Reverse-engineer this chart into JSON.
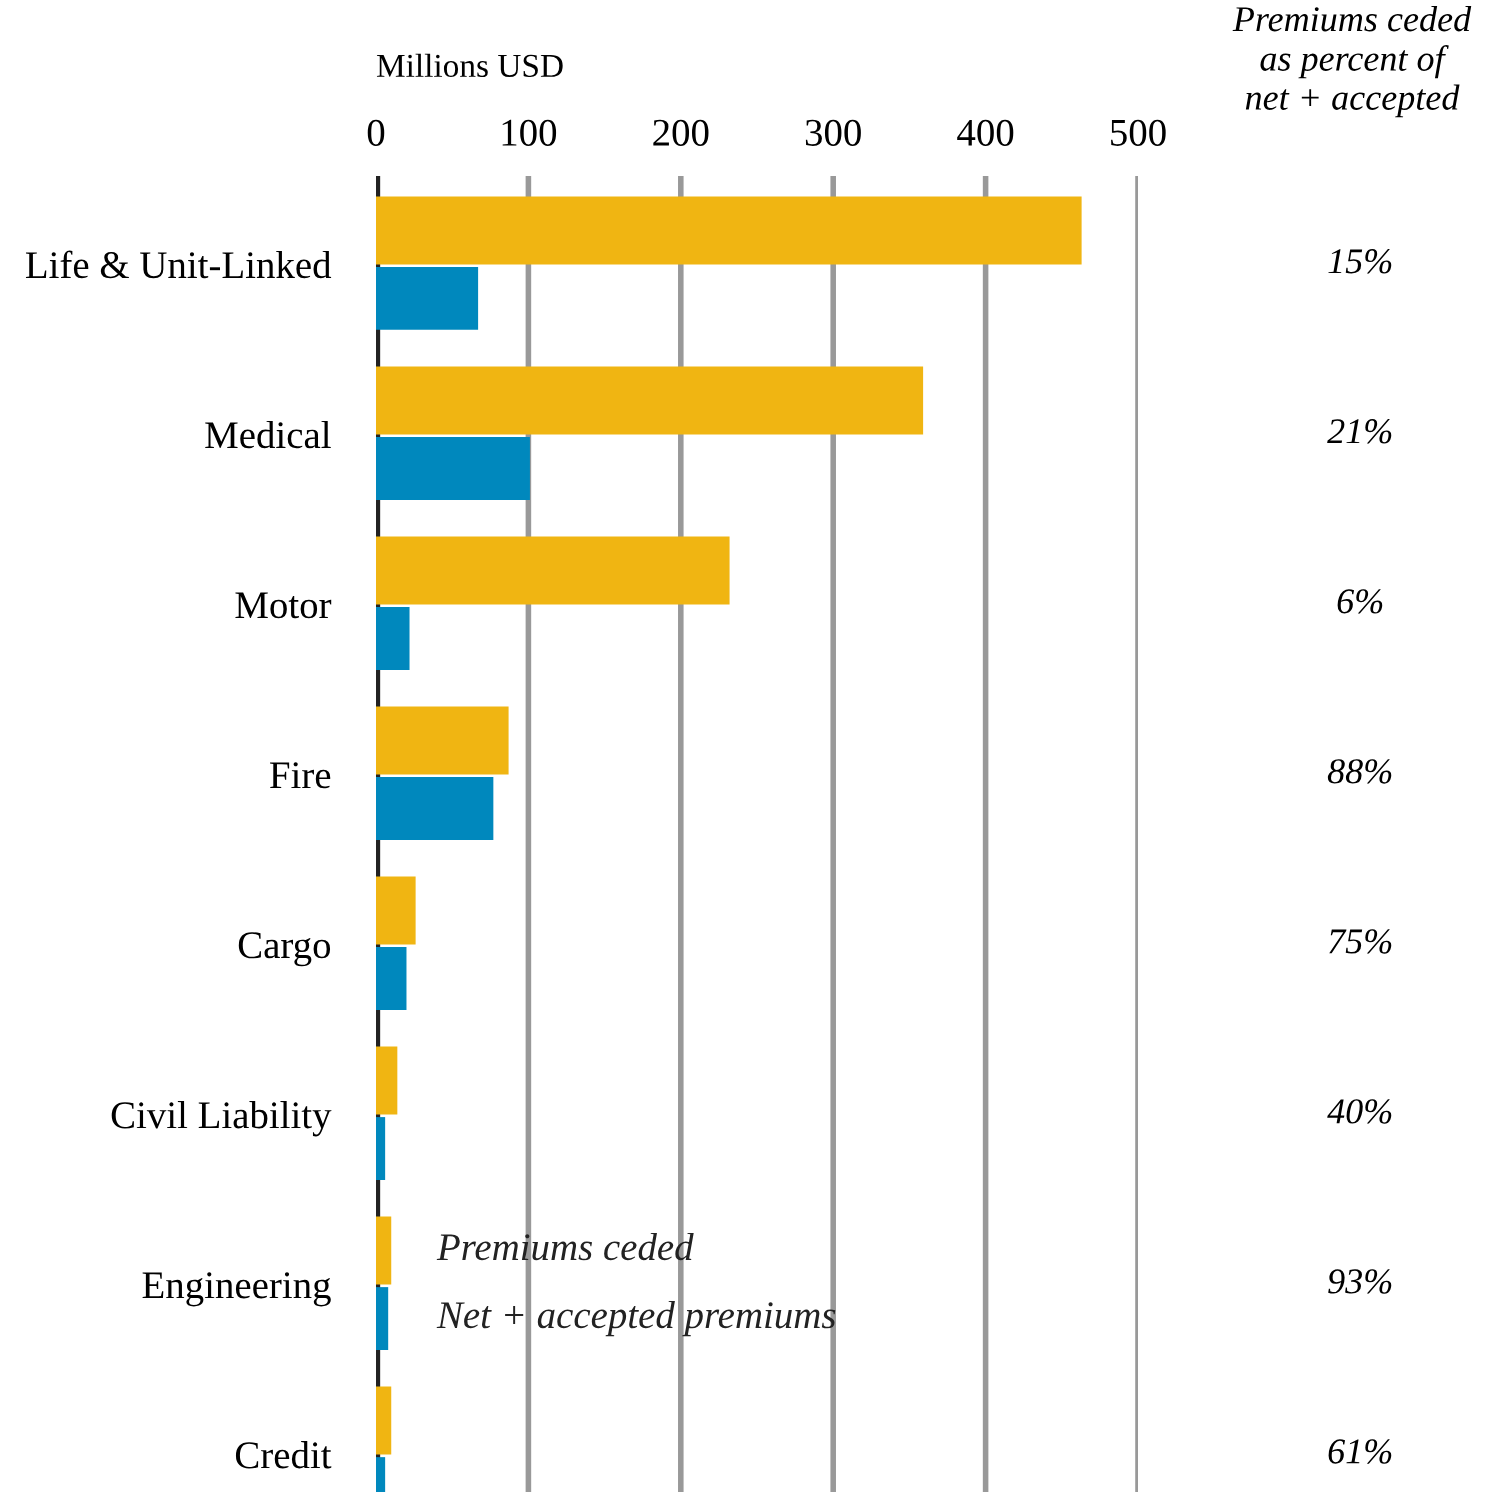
{
  "chart_data": {
    "type": "bar",
    "orientation": "horizontal",
    "xlabel": "Millions USD",
    "categories": [
      "Life & Unit-Linked",
      "Medical",
      "Motor",
      "Fire",
      "Cargo",
      "Civil Liability",
      "Engineering",
      "Credit"
    ],
    "series": [
      {
        "name": "Premiums ceded",
        "color": "#f0b512",
        "values": [
          463,
          359,
          232,
          87,
          26,
          14,
          10,
          10
        ]
      },
      {
        "name": "Net + accepted premiums",
        "color": "#0088bd",
        "values": [
          67,
          101,
          22,
          77,
          20,
          6,
          8,
          6
        ]
      }
    ],
    "xlim": [
      0,
      500
    ],
    "xticks": [
      0,
      100,
      200,
      300,
      400,
      500
    ],
    "grid": "x",
    "legend": false,
    "annotations": [
      "Premiums ceded\nas percent of\nnet + accepted",
      "15%",
      "21%",
      "6%",
      "88%",
      "75%",
      "40%",
      "93%",
      "61%"
    ]
  }
}
